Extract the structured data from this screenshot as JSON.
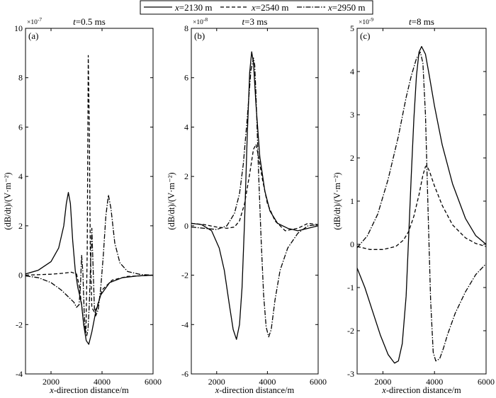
{
  "chart_data": {
    "type": "line",
    "legend": {
      "position": "top-center",
      "entries": [
        {
          "var": "x",
          "text": "=2130 m",
          "style": "solid"
        },
        {
          "var": "x",
          "text": "=2540 m",
          "style": "dashed"
        },
        {
          "var": "x",
          "text": "=2950 m",
          "style": "dashdot"
        }
      ]
    },
    "panels": [
      {
        "letter": "(a)",
        "title_var": "t",
        "title_text": "=0.5 ms",
        "exponent_base": "×10",
        "exponent": "-7",
        "xlabel_var": "x",
        "xlabel_text": "-direction distance/m",
        "ylabel": "(dB/dt)/(V·m⁻²)",
        "xlim": [
          1000,
          6000
        ],
        "ylim": [
          -4,
          10
        ],
        "xticks": [
          "2000",
          "4000",
          "6000"
        ],
        "xtick_values": [
          2000,
          4000,
          6000
        ],
        "yticks": [
          "-4",
          "-2",
          "0",
          "2",
          "4",
          "6",
          "8",
          "10"
        ],
        "ytick_values": [
          -4,
          -2,
          0,
          2,
          4,
          6,
          8,
          10
        ],
        "series": [
          {
            "name": "x=2130 m",
            "style": "solid",
            "x": [
              1000,
              1500,
              2000,
              2300,
              2500,
              2600,
              2680,
              2760,
              2850,
              2950,
              3050,
              3120,
              3200,
              3280,
              3380,
              3480,
              3600,
              3750,
              3950,
              4300,
              4800,
              5400,
              6000
            ],
            "y": [
              0.05,
              0.2,
              0.55,
              1.1,
              2.0,
              2.9,
              3.35,
              2.9,
              1.4,
              0.2,
              -0.5,
              -0.8,
              -1.2,
              -2.0,
              -2.65,
              -2.8,
              -2.3,
              -1.5,
              -0.8,
              -0.3,
              -0.1,
              -0.03,
              0
            ]
          },
          {
            "name": "x=2540 m",
            "style": "dashed",
            "x": [
              1000,
              1500,
              2000,
              2500,
              2800,
              3000,
              3100,
              3200,
              3300,
              3370,
              3420,
              3460,
              3500,
              3540,
              3600,
              3700,
              3800,
              4000,
              4400,
              5000,
              6000
            ],
            "y": [
              0,
              0.02,
              0.04,
              0.08,
              0.12,
              0.05,
              -0.4,
              -1.2,
              -2.1,
              -2.3,
              1.0,
              8.9,
              6.0,
              1.0,
              -1.3,
              -1.5,
              -1.3,
              -0.6,
              -0.2,
              -0.05,
              0
            ]
          },
          {
            "name": "x=2950 m",
            "style": "dashdot",
            "x": [
              1000,
              1500,
              2000,
              2400,
              2700,
              2900,
              3000,
              3100,
              3150,
              3200,
              3250,
              3300,
              3350,
              3400,
              3450,
              3500,
              3550,
              3600,
              3650,
              3700,
              3750,
              3850,
              3950,
              4050,
              4150,
              4250,
              4350,
              4500,
              4700,
              5000,
              5500,
              6000
            ],
            "y": [
              -0.03,
              -0.1,
              -0.3,
              -0.6,
              -0.9,
              -1.1,
              -1.3,
              -1.2,
              -0.5,
              0.8,
              0.1,
              -1.5,
              -2.3,
              -2.45,
              -2.2,
              -1.2,
              0.4,
              1.9,
              0.3,
              -1.3,
              -1.65,
              -1.4,
              -0.5,
              0.8,
              2.4,
              3.25,
              2.7,
              1.3,
              0.5,
              0.15,
              0.03,
              0
            ]
          }
        ]
      },
      {
        "letter": "(b)",
        "title_var": "t",
        "title_text": "=3 ms",
        "exponent_base": "×10",
        "exponent": "-8",
        "xlabel_var": "x",
        "xlabel_text": "-direction distance/m",
        "ylabel": "(dB/dt)/(V·m⁻²)",
        "xlim": [
          1000,
          6000
        ],
        "ylim": [
          -6,
          8
        ],
        "xticks": [
          "2000",
          "4000",
          "6000"
        ],
        "xtick_values": [
          2000,
          4000,
          6000
        ],
        "yticks": [
          "-6",
          "-4",
          "-2",
          "0",
          "2",
          "4",
          "6",
          "8"
        ],
        "ytick_values": [
          -6,
          -4,
          -2,
          0,
          2,
          4,
          6,
          8
        ],
        "series": [
          {
            "name": "x=2130 m",
            "style": "solid",
            "x": [
              1000,
              1400,
              1800,
              2100,
              2300,
              2500,
              2650,
              2780,
              2900,
              3000,
              3100,
              3200,
              3300,
              3380,
              3450,
              3550,
              3700,
              3900,
              4100,
              4400,
              4800,
              5200,
              5600,
              6000
            ],
            "y": [
              0.1,
              0.05,
              -0.2,
              -0.9,
              -1.8,
              -3.2,
              -4.2,
              -4.6,
              -4.0,
              -2.5,
              0.2,
              3.5,
              6.2,
              7.05,
              6.6,
              4.9,
              2.8,
              1.4,
              0.6,
              0.1,
              -0.1,
              -0.2,
              -0.1,
              0
            ]
          },
          {
            "name": "x=2540 m",
            "style": "dashed",
            "x": [
              1000,
              1500,
              2000,
              2400,
              2700,
              2900,
              3100,
              3300,
              3450,
              3550,
              3650,
              3800,
              4000,
              4300,
              4700,
              5200,
              5600,
              6000
            ],
            "y": [
              0.1,
              0.05,
              -0.05,
              -0.1,
              -0.05,
              0.2,
              0.9,
              2.1,
              3.1,
              3.3,
              2.8,
              1.9,
              0.9,
              0.2,
              -0.2,
              -0.1,
              0.1,
              0.05
            ]
          },
          {
            "name": "x=2950 m",
            "style": "dashdot",
            "x": [
              1000,
              1500,
              2000,
              2400,
              2700,
              2900,
              3050,
              3200,
              3350,
              3450,
              3500,
              3550,
              3650,
              3750,
              3850,
              3950,
              4050,
              4150,
              4300,
              4500,
              4800,
              5200,
              5600,
              6000
            ],
            "y": [
              -0.05,
              -0.1,
              -0.15,
              0.0,
              0.5,
              1.3,
              2.5,
              4.3,
              6.3,
              6.8,
              6.5,
              5.3,
              2.2,
              -0.5,
              -2.8,
              -4.1,
              -4.5,
              -4.2,
              -3.0,
              -1.8,
              -0.9,
              -0.3,
              0.0,
              0.05
            ]
          }
        ]
      },
      {
        "letter": "(c)",
        "title_var": "t",
        "title_text": "=8 ms",
        "exponent_base": "×10",
        "exponent": "-9",
        "xlabel_var": "x",
        "xlabel_text": "-direction distance/m",
        "ylabel": "(dB/dt)/(V·m⁻²)",
        "xlim": [
          1000,
          6000
        ],
        "ylim": [
          -3,
          5
        ],
        "xticks": [
          "2000",
          "4000",
          "6000"
        ],
        "xtick_values": [
          2000,
          4000,
          6000
        ],
        "yticks": [
          "-3",
          "-2",
          "-1",
          "0",
          "1",
          "2",
          "3",
          "4",
          "5"
        ],
        "ytick_values": [
          -3,
          -2,
          -1,
          0,
          1,
          2,
          3,
          4,
          5
        ],
        "series": [
          {
            "name": "x=2130 m",
            "style": "solid",
            "x": [
              1000,
              1300,
              1600,
              1900,
              2200,
              2450,
              2600,
              2750,
              2900,
              3000,
              3100,
              3200,
              3300,
              3400,
              3500,
              3650,
              3800,
              4000,
              4300,
              4700,
              5200,
              5600,
              6000
            ],
            "y": [
              -0.55,
              -1.0,
              -1.55,
              -2.1,
              -2.55,
              -2.75,
              -2.7,
              -2.3,
              -1.2,
              0.2,
              1.6,
              2.9,
              3.9,
              4.45,
              4.58,
              4.4,
              3.9,
              3.2,
              2.3,
              1.4,
              0.6,
              0.2,
              0.0
            ]
          },
          {
            "name": "x=2540 m",
            "style": "dashed",
            "x": [
              1000,
              1500,
              2000,
              2500,
              2800,
              3000,
              3200,
              3400,
              3550,
              3650,
              3700,
              3800,
              4000,
              4300,
              4700,
              5200,
              5600,
              6000
            ],
            "y": [
              -0.05,
              -0.12,
              -0.12,
              -0.05,
              0.1,
              0.3,
              0.65,
              1.15,
              1.6,
              1.8,
              1.82,
              1.7,
              1.35,
              0.9,
              0.45,
              0.15,
              0.02,
              -0.05
            ]
          },
          {
            "name": "x=2950 m",
            "style": "dashdot",
            "x": [
              1000,
              1400,
              1800,
              2200,
              2600,
              2900,
              3100,
              3300,
              3450,
              3550,
              3650,
              3750,
              3850,
              3950,
              4050,
              4200,
              4350,
              4500,
              4800,
              5200,
              5600,
              6000
            ],
            "y": [
              -0.08,
              0.2,
              0.7,
              1.5,
              2.5,
              3.4,
              3.9,
              4.3,
              4.45,
              4.2,
              3.0,
              0.8,
              -1.3,
              -2.5,
              -2.7,
              -2.65,
              -2.4,
              -2.1,
              -1.6,
              -1.1,
              -0.7,
              -0.45
            ]
          }
        ]
      }
    ]
  }
}
